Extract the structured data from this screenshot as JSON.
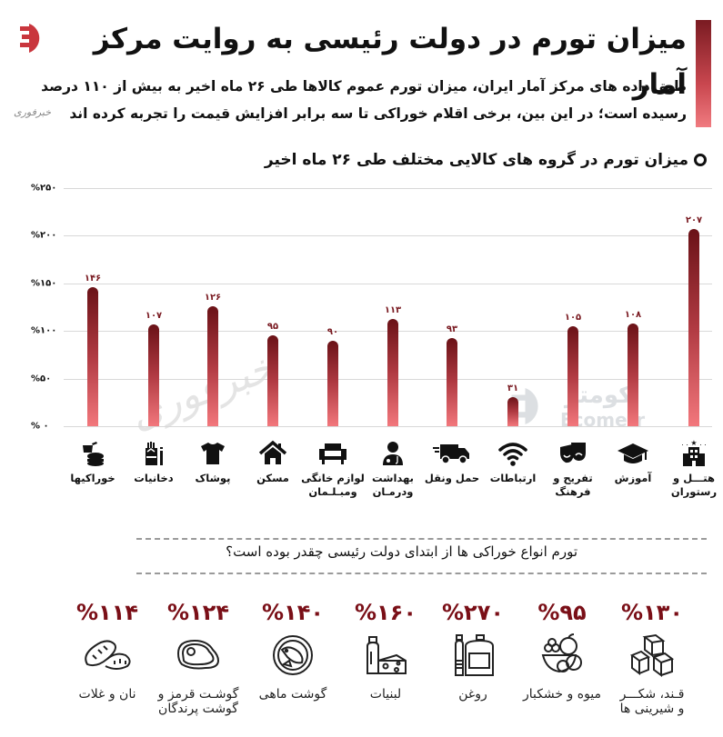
{
  "header": {
    "title": "میزان تورم در دولت رئیسی به روایت مرکز آمار",
    "subtitle_line1": "طبق داده های مرکز آمار ایران، میزان تورم عموم کالاها طی ۲۶ ماه اخیر به بیش از ۱۱۰ درصد",
    "subtitle_line2": "رسیده است؛ در این بین، برخی اقلام خوراکی تا سه برابر افزایش قیمت را تجربه کرده اند",
    "small_brand": "خبرفوری",
    "accent_color": "#7a1b22"
  },
  "watermarks": {
    "khabarfori": "خبرفوری",
    "ecometr_fa": "اکومتر",
    "ecometr_en": "Ecometr"
  },
  "chart_title": "میزان تورم در گروه های کالایی مختلف طی ۲۶ ماه اخیر",
  "y_ticks": [
    "%۲۵۰",
    "%۲۰۰",
    "%۱۵۰",
    "%۱۰۰",
    "%۵۰",
    "% ۰"
  ],
  "bars": [
    {
      "label_line1": "خوراکیها",
      "label_line2": "",
      "value_fa": "۱۴۶",
      "icon": "fast-food-icon"
    },
    {
      "label_line1": "دخانیات",
      "label_line2": "",
      "value_fa": "۱۰۷",
      "icon": "cigarettes-icon"
    },
    {
      "label_line1": "پوشاک",
      "label_line2": "",
      "value_fa": "۱۲۶",
      "icon": "tshirt-icon"
    },
    {
      "label_line1": "مسکن",
      "label_line2": "",
      "value_fa": "۹۵",
      "icon": "house-icon"
    },
    {
      "label_line1": "لوازم خانگی",
      "label_line2": "ومبـلـمان",
      "value_fa": "۹۰",
      "icon": "armchair-icon"
    },
    {
      "label_line1": "بهداشت",
      "label_line2": "ودرمـان",
      "value_fa": "۱۱۳",
      "icon": "doctor-icon"
    },
    {
      "label_line1": "حمل ونقل",
      "label_line2": "",
      "value_fa": "۹۳",
      "icon": "truck-icon"
    },
    {
      "label_line1": "ارتباطات",
      "label_line2": "",
      "value_fa": "۳۱",
      "icon": "wifi-icon"
    },
    {
      "label_line1": "تفریح و",
      "label_line2": "فرهنگ",
      "value_fa": "۱۰۵",
      "icon": "theater-masks-icon"
    },
    {
      "label_line1": "آموزش",
      "label_line2": "",
      "value_fa": "۱۰۸",
      "icon": "graduation-cap-icon"
    },
    {
      "label_line1": "هتـــل و",
      "label_line2": "رستوران",
      "value_fa": "۲۰۷",
      "icon": "hotel-icon"
    }
  ],
  "chart_data": {
    "type": "bar",
    "title": "میزان تورم در گروه های کالایی مختلف طی ۲۶ ماه اخیر",
    "xlabel": "",
    "ylabel": "",
    "ylim": [
      0,
      250
    ],
    "grid": true,
    "yticks": [
      0,
      50,
      100,
      150,
      200,
      250
    ],
    "categories": [
      "خوراکیها",
      "دخانیات",
      "پوشاک",
      "مسکن",
      "لوازم خانگی و مبلمان",
      "بهداشت و درمان",
      "حمل و نقل",
      "ارتباطات",
      "تفریح و فرهنگ",
      "آموزش",
      "هتل و رستوران"
    ],
    "values": [
      146,
      107,
      126,
      95,
      90,
      113,
      93,
      31,
      105,
      108,
      207
    ],
    "units": "%"
  },
  "question": "تورم انواع خوراکی ها از ابتدای دولت رئیسی چقدر بوده است؟",
  "foods": [
    {
      "pct": "%۱۱۴",
      "label_line1": "نان و غلات",
      "label_line2": "",
      "value": 114,
      "icon": "bread-icon"
    },
    {
      "pct": "%۱۲۴",
      "label_line1": "گوشـت قرمز و",
      "label_line2": "گوشت پرندگان",
      "value": 124,
      "icon": "steak-icon"
    },
    {
      "pct": "%۱۴۰",
      "label_line1": "گوشت ماهی",
      "label_line2": "",
      "value": 140,
      "icon": "fish-plate-icon"
    },
    {
      "pct": "%۱۶۰",
      "label_line1": "لبنیات",
      "label_line2": "",
      "value": 160,
      "icon": "milk-cheese-icon"
    },
    {
      "pct": "%۲۷۰",
      "label_line1": "روغن",
      "label_line2": "",
      "value": 270,
      "icon": "oil-bottles-icon"
    },
    {
      "pct": "%۹۵",
      "label_line1": "میوه و خشکبار",
      "label_line2": "",
      "value": 95,
      "icon": "fruit-bowl-icon"
    },
    {
      "pct": "%۱۳۰",
      "label_line1": "قـند، شکـــر",
      "label_line2": "و شیرینی ها",
      "value": 130,
      "icon": "sugar-cubes-icon"
    }
  ]
}
